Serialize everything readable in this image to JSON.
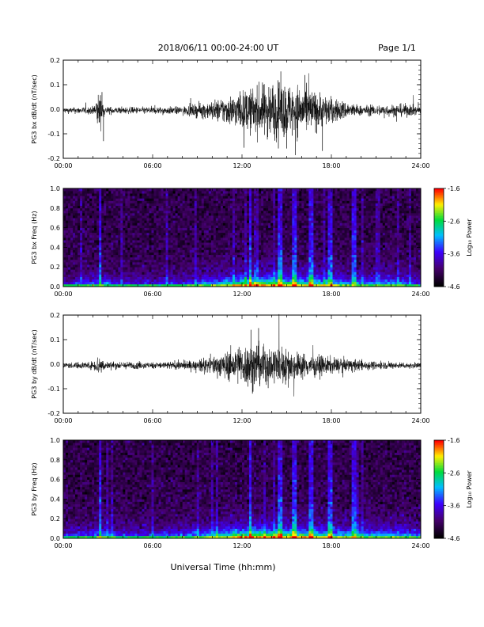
{
  "header": {
    "title": "2018/06/11  00:00-24:00 UT",
    "page": "Page 1/1"
  },
  "xlabel": "Universal Time (hh:mm)",
  "colorbar_label": "Log₁₀ Power",
  "chart_data": [
    {
      "type": "line",
      "ylabel": "PG3 bx dB/dt (nT/sec)",
      "xlim": [
        0,
        24
      ],
      "ylim": [
        -0.2,
        0.2
      ],
      "x_ticks": [
        "00:00",
        "06:00",
        "12:00",
        "18:00",
        "24:00"
      ],
      "y_ticks": [
        "0.2",
        "0.1",
        "0.0",
        "-0.1",
        "-0.2"
      ],
      "envelope": [
        {
          "t": 0,
          "amp": 0.008
        },
        {
          "t": 2.0,
          "amp": 0.012
        },
        {
          "t": 2.4,
          "amp": 0.06
        },
        {
          "t": 2.8,
          "amp": 0.012
        },
        {
          "t": 4,
          "amp": 0.01
        },
        {
          "t": 8,
          "amp": 0.012
        },
        {
          "t": 10,
          "amp": 0.03
        },
        {
          "t": 12,
          "amp": 0.06
        },
        {
          "t": 14,
          "amp": 0.09
        },
        {
          "t": 16,
          "amp": 0.08
        },
        {
          "t": 18,
          "amp": 0.04
        },
        {
          "t": 20,
          "amp": 0.015
        },
        {
          "t": 23,
          "amp": 0.02
        },
        {
          "t": 24,
          "amp": 0.012
        }
      ],
      "spikes": [
        {
          "t": 2.7,
          "v": -0.13
        },
        {
          "t": 2.6,
          "v": 0.07
        },
        {
          "t": 14.5,
          "v": 0.11
        },
        {
          "t": 15.0,
          "v": -0.16
        },
        {
          "t": 17.4,
          "v": -0.17
        },
        {
          "t": 13.8,
          "v": 0.09
        }
      ]
    },
    {
      "type": "heatmap",
      "ylabel": "PG3 bx Freq (Hz)",
      "xlim": [
        0,
        24
      ],
      "ylim": [
        0,
        1.0
      ],
      "x_ticks": [
        "00:00",
        "06:00",
        "12:00",
        "18:00",
        "24:00"
      ],
      "y_ticks": [
        "1.0",
        "0.8",
        "0.6",
        "0.4",
        "0.2",
        "0.0"
      ],
      "clim": [
        -4.6,
        -1.6
      ],
      "cbar_ticks": [
        "-1.6",
        "-2.6",
        "-3.6",
        "-4.6"
      ],
      "activity": [
        {
          "t": 0,
          "a": 0.25
        },
        {
          "t": 2.5,
          "a": 0.45
        },
        {
          "t": 4,
          "a": 0.3
        },
        {
          "t": 8,
          "a": 0.35
        },
        {
          "t": 10,
          "a": 0.55
        },
        {
          "t": 12,
          "a": 0.8
        },
        {
          "t": 14,
          "a": 0.85
        },
        {
          "t": 17,
          "a": 0.7
        },
        {
          "t": 20,
          "a": 0.45
        },
        {
          "t": 22,
          "a": 0.55
        },
        {
          "t": 24,
          "a": 0.35
        }
      ],
      "stripes": [
        2.5,
        12.6,
        14.6,
        15.5,
        16.6,
        17.9,
        19.5
      ]
    },
    {
      "type": "line",
      "ylabel": "PG3 by dB/dt (nT/sec)",
      "xlim": [
        0,
        24
      ],
      "ylim": [
        -0.2,
        0.2
      ],
      "x_ticks": [
        "00:00",
        "06:00",
        "12:00",
        "18:00",
        "24:00"
      ],
      "y_ticks": [
        "0.2",
        "0.1",
        "0.0",
        "-0.1",
        "-0.2"
      ],
      "envelope": [
        {
          "t": 0,
          "amp": 0.008
        },
        {
          "t": 2.0,
          "amp": 0.012
        },
        {
          "t": 2.4,
          "amp": 0.035
        },
        {
          "t": 2.8,
          "amp": 0.012
        },
        {
          "t": 6,
          "amp": 0.01
        },
        {
          "t": 9,
          "amp": 0.015
        },
        {
          "t": 10.5,
          "amp": 0.035
        },
        {
          "t": 12.5,
          "amp": 0.07
        },
        {
          "t": 14.5,
          "amp": 0.06
        },
        {
          "t": 16,
          "amp": 0.04
        },
        {
          "t": 18,
          "amp": 0.025
        },
        {
          "t": 21,
          "amp": 0.012
        },
        {
          "t": 24,
          "amp": 0.008
        }
      ],
      "spikes": [
        {
          "t": 12.6,
          "v": 0.14
        },
        {
          "t": 12.7,
          "v": -0.12
        },
        {
          "t": 11.8,
          "v": 0.07
        },
        {
          "t": 15.1,
          "v": 0.05
        },
        {
          "t": 13.2,
          "v": -0.09
        }
      ]
    },
    {
      "type": "heatmap",
      "ylabel": "PG3 by Freq (Hz)",
      "xlim": [
        0,
        24
      ],
      "ylim": [
        0,
        1.0
      ],
      "x_ticks": [
        "00:00",
        "06:00",
        "12:00",
        "18:00",
        "24:00"
      ],
      "y_ticks": [
        "1.0",
        "0.8",
        "0.6",
        "0.4",
        "0.2",
        "0.0"
      ],
      "clim": [
        -4.6,
        -1.6
      ],
      "cbar_ticks": [
        "-1.6",
        "-2.6",
        "-3.6",
        "-4.6"
      ],
      "activity": [
        {
          "t": 0,
          "a": 0.3
        },
        {
          "t": 2.5,
          "a": 0.5
        },
        {
          "t": 4,
          "a": 0.35
        },
        {
          "t": 8,
          "a": 0.4
        },
        {
          "t": 10,
          "a": 0.6
        },
        {
          "t": 12,
          "a": 0.85
        },
        {
          "t": 14,
          "a": 0.85
        },
        {
          "t": 17,
          "a": 0.75
        },
        {
          "t": 20,
          "a": 0.55
        },
        {
          "t": 22,
          "a": 0.6
        },
        {
          "t": 24,
          "a": 0.4
        }
      ],
      "stripes": [
        2.5,
        12.6,
        14.6,
        15.5,
        16.6,
        17.9,
        19.5
      ]
    }
  ]
}
